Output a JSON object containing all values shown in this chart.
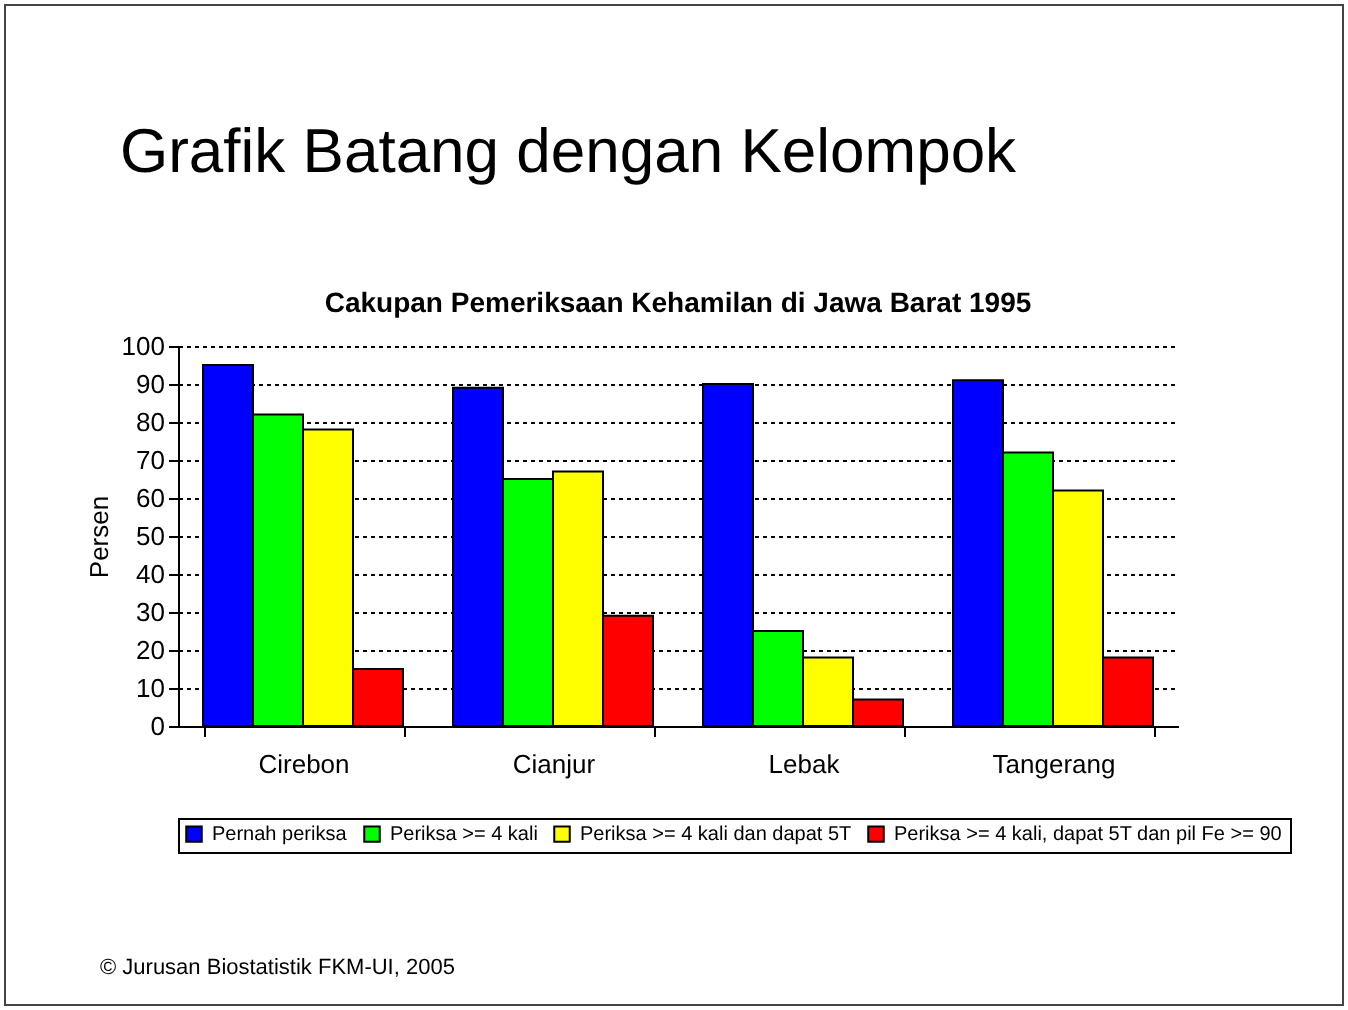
{
  "chart_data": {
    "type": "bar",
    "title": "Grafik Batang dengan Kelompok",
    "subtitle": "Cakupan Pemeriksaan Kehamilan di Jawa Barat 1995",
    "ylabel": "Persen",
    "categories": [
      "Cirebon",
      "Cianjur",
      "Lebak",
      "Tangerang"
    ],
    "series": [
      {
        "name": "Pernah periksa",
        "color": "#0000ff",
        "values": [
          95,
          89,
          90,
          91
        ]
      },
      {
        "name": "Periksa >= 4 kali",
        "color": "#00ff00",
        "values": [
          82,
          65,
          25,
          72
        ]
      },
      {
        "name": "Periksa >= 4 kali dan dapat 5T",
        "color": "#ffff00",
        "values": [
          78,
          67,
          18,
          62
        ]
      },
      {
        "name": "Periksa >= 4 kali, dapat 5T dan pil Fe >= 90",
        "color": "#ff0000",
        "values": [
          15,
          29,
          7,
          18
        ]
      }
    ],
    "ylim": [
      0,
      100
    ],
    "yticks": [
      0,
      10,
      20,
      30,
      40,
      50,
      60,
      70,
      80,
      90,
      100
    ],
    "grid": "y",
    "legend": "bottom",
    "annotations": [
      "© Jurusan Biostatistik FKM-UI, 2005"
    ]
  }
}
